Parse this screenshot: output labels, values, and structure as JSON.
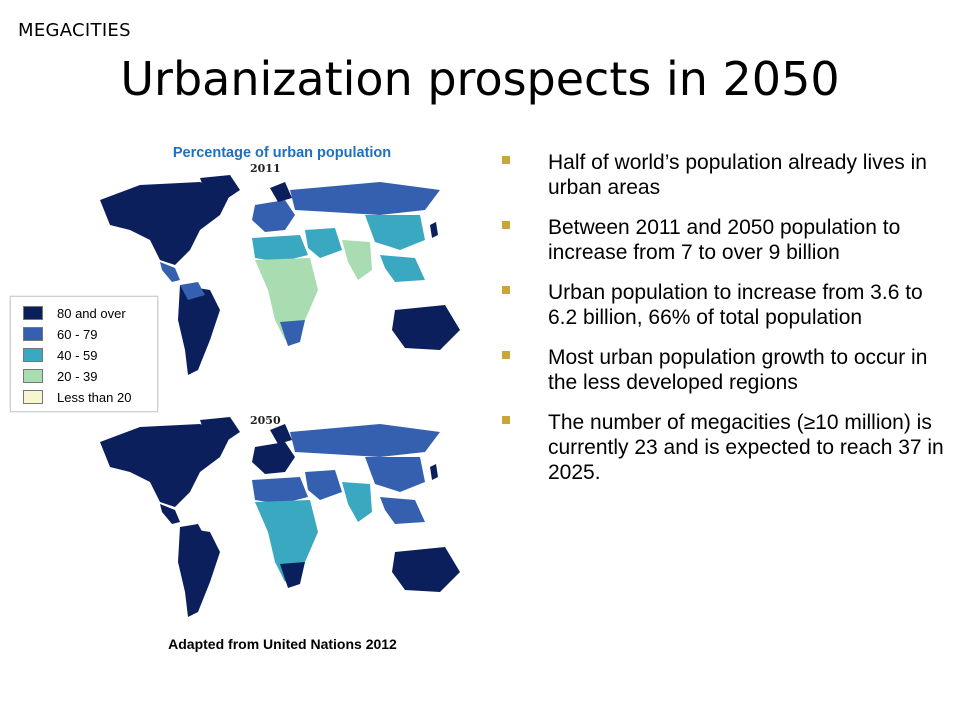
{
  "slide": {
    "section_label": "MEGACITIES",
    "title": "Urbanization prospects in 2050"
  },
  "maps": {
    "caption": "Percentage of urban population",
    "year_top": "2011",
    "year_bottom": "2050",
    "source": "Adapted from United Nations 2012"
  },
  "legend": [
    {
      "label": "80 and over",
      "color": "#0b1f5c"
    },
    {
      "label": "60 - 79",
      "color": "#3560b0"
    },
    {
      "label": "40 - 59",
      "color": "#3aa8c0"
    },
    {
      "label": "20 - 39",
      "color": "#a9dcb0"
    },
    {
      "label": "Less than 20",
      "color": "#f6f7cf"
    }
  ],
  "bullets": [
    "Half of world’s population already lives in urban areas",
    "Between 2011 and 2050 population to increase from 7 to over 9 billion",
    "Urban population to increase from 3.6 to 6.2 billion, 66% of total population",
    "Most urban population growth to occur in the less developed regions",
    "The number of megacities (≥10 million) is currently 23 and is expected to reach 37 in 2025."
  ],
  "colors": {
    "bullet": "#c9a63b",
    "caption": "#1f6fbf"
  }
}
